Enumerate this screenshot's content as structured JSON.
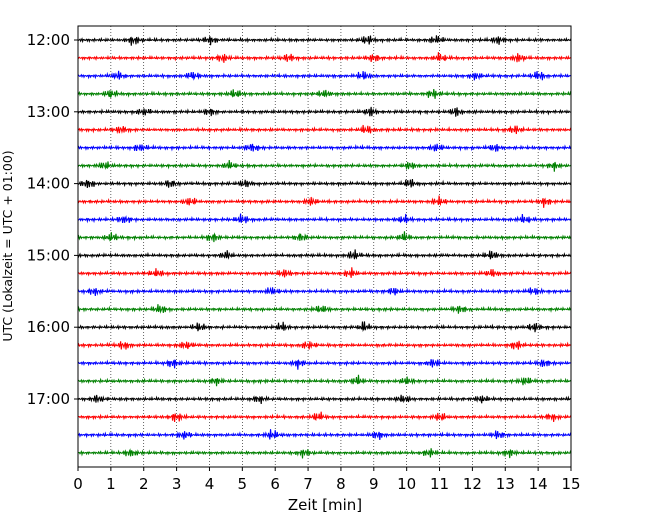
{
  "chart_data": {
    "type": "line",
    "subtype": "helicorder",
    "xlabel": "Zeit  [min]",
    "ylabel": "UTC (Lokalzeit = UTC + 01:00)",
    "xlim": [
      0,
      15
    ],
    "x_ticks": [
      "0",
      "1",
      "2",
      "3",
      "4",
      "5",
      "6",
      "7",
      "8",
      "9",
      "10",
      "11",
      "12",
      "13",
      "14",
      "15"
    ],
    "y_tick_labels": [
      "12:00",
      "13:00",
      "14:00",
      "15:00",
      "16:00",
      "17:00"
    ],
    "trace_colors": [
      "#000000",
      "#ff0000",
      "#0000ff",
      "#008000"
    ],
    "trace_minutes": 15,
    "traces": [
      {
        "start": "12:00",
        "color": "#000000",
        "bursts_min": [
          1.7,
          4.0,
          8.8,
          10.9,
          12.8
        ]
      },
      {
        "start": "12:15",
        "color": "#ff0000",
        "bursts_min": [
          4.4,
          6.4,
          9.0,
          11.0,
          13.4
        ]
      },
      {
        "start": "12:30",
        "color": "#0000ff",
        "bursts_min": [
          1.2,
          3.5,
          8.7,
          12.1,
          14.0
        ]
      },
      {
        "start": "12:45",
        "color": "#008000",
        "bursts_min": [
          1.0,
          4.8,
          7.5,
          10.8
        ]
      },
      {
        "start": "13:00",
        "color": "#000000",
        "bursts_min": [
          2.0,
          4.0,
          8.9,
          11.5
        ]
      },
      {
        "start": "13:15",
        "color": "#ff0000",
        "bursts_min": [
          1.3,
          8.8,
          13.3
        ]
      },
      {
        "start": "13:30",
        "color": "#0000ff",
        "bursts_min": [
          1.9,
          5.3,
          10.9,
          12.7
        ]
      },
      {
        "start": "13:45",
        "color": "#008000",
        "bursts_min": [
          0.8,
          4.6,
          10.1,
          14.5
        ]
      },
      {
        "start": "14:00",
        "color": "#000000",
        "bursts_min": [
          0.3,
          2.8,
          5.1,
          10.1
        ]
      },
      {
        "start": "14:15",
        "color": "#ff0000",
        "bursts_min": [
          3.4,
          7.1,
          11.0,
          14.2
        ]
      },
      {
        "start": "14:30",
        "color": "#0000ff",
        "bursts_min": [
          1.4,
          5.0,
          9.9,
          13.6
        ]
      },
      {
        "start": "14:45",
        "color": "#008000",
        "bursts_min": [
          1.0,
          4.1,
          6.8,
          9.9
        ]
      },
      {
        "start": "15:00",
        "color": "#000000",
        "bursts_min": [
          4.5,
          8.4,
          12.6
        ]
      },
      {
        "start": "15:15",
        "color": "#ff0000",
        "bursts_min": [
          2.4,
          6.3,
          8.3,
          12.6
        ]
      },
      {
        "start": "15:30",
        "color": "#0000ff",
        "bursts_min": [
          0.5,
          5.9,
          9.6,
          13.9
        ]
      },
      {
        "start": "15:45",
        "color": "#008000",
        "bursts_min": [
          2.5,
          7.4,
          11.6
        ]
      },
      {
        "start": "16:00",
        "color": "#000000",
        "bursts_min": [
          3.7,
          6.2,
          8.7,
          13.9
        ]
      },
      {
        "start": "16:15",
        "color": "#ff0000",
        "bursts_min": [
          1.4,
          3.3,
          7.0,
          13.3
        ]
      },
      {
        "start": "16:30",
        "color": "#0000ff",
        "bursts_min": [
          2.9,
          6.7,
          10.8,
          14.2
        ]
      },
      {
        "start": "16:45",
        "color": "#008000",
        "bursts_min": [
          4.2,
          8.5,
          10.0,
          13.6
        ]
      },
      {
        "start": "17:00",
        "color": "#000000",
        "bursts_min": [
          0.6,
          5.5,
          9.9,
          12.3
        ]
      },
      {
        "start": "17:15",
        "color": "#ff0000",
        "bursts_min": [
          3.0,
          7.3,
          11.0,
          14.4
        ]
      },
      {
        "start": "17:30",
        "color": "#0000ff",
        "bursts_min": [
          3.2,
          5.9,
          9.1,
          12.8
        ]
      },
      {
        "start": "17:45",
        "color": "#008000",
        "bursts_min": [
          1.6,
          6.9,
          10.7,
          13.1
        ]
      }
    ],
    "grid": {
      "vertical": true,
      "style": "dotted"
    },
    "legend": "none"
  }
}
